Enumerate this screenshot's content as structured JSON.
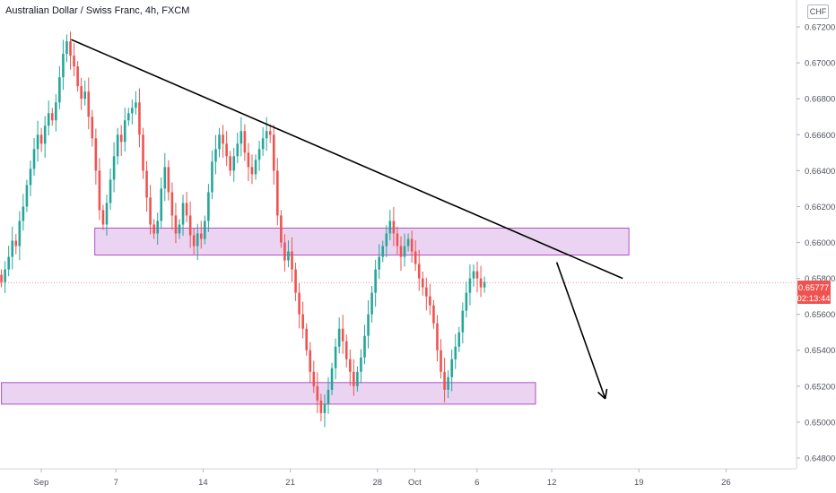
{
  "header": {
    "title": "Australian Dollar / Swiss Franc, 4h, FXCM",
    "currency": "CHF"
  },
  "colors": {
    "up": "#26a69a",
    "down": "#ef5350",
    "zone_fill": "#e6cdee",
    "zone_stroke": "#b24fc6",
    "line": "#000000",
    "price_line": "#f48fb1"
  },
  "chart_data": {
    "type": "candlestick",
    "y_ticks": [
      "0.67200",
      "0.67000",
      "0.66800",
      "0.66600",
      "0.66400",
      "0.66200",
      "0.66000",
      "0.65800",
      "0.65600",
      "0.65400",
      "0.65200",
      "0.65000",
      "0.64800"
    ],
    "y_values": [
      0.672,
      0.67,
      0.668,
      0.666,
      0.664,
      0.662,
      0.66,
      0.658,
      0.656,
      0.654,
      0.652,
      0.65,
      0.648
    ],
    "ylim": [
      0.6474,
      0.6735
    ],
    "x_labels": [
      {
        "label": "Sep",
        "day": 0
      },
      {
        "label": "7",
        "day": 6
      },
      {
        "label": "14",
        "day": 13
      },
      {
        "label": "21",
        "day": 20
      },
      {
        "label": "28",
        "day": 27
      },
      {
        "label": "Oct",
        "day": 30
      },
      {
        "label": "6",
        "day": 35
      },
      {
        "label": "12",
        "day": 41
      },
      {
        "label": "19",
        "day": 48
      },
      {
        "label": "26",
        "day": 55
      }
    ],
    "current_price": "0.65777",
    "countdown": "02:13:44",
    "current_value": 0.65777,
    "zones": [
      {
        "from_day": 4.3,
        "to_day": 47.2,
        "low": 0.6593,
        "high": 0.6608
      },
      {
        "from_day": -3.2,
        "to_day": 39.7,
        "low": 0.651,
        "high": 0.6522
      }
    ],
    "trendline": {
      "start_day": 2.4,
      "start_value": 0.6713,
      "end_day": 46.7,
      "end_value": 0.658
    },
    "arrow": {
      "start_day": 41.4,
      "start_value": 0.6589,
      "end_day": 45.3,
      "end_value": 0.6513
    },
    "candle_step_days": 0.1667,
    "start_day": -3.2,
    "closes": [
      0.6578,
      0.6585,
      0.6592,
      0.6601,
      0.6598,
      0.6612,
      0.662,
      0.6632,
      0.6641,
      0.6652,
      0.666,
      0.6655,
      0.6665,
      0.6672,
      0.6668,
      0.6678,
      0.6692,
      0.6705,
      0.6712,
      0.6704,
      0.6698,
      0.6687,
      0.668,
      0.6684,
      0.667,
      0.6658,
      0.664,
      0.6618,
      0.661,
      0.6622,
      0.6635,
      0.6648,
      0.666,
      0.6656,
      0.6668,
      0.6672,
      0.6675,
      0.6678,
      0.666,
      0.664,
      0.6625,
      0.661,
      0.6605,
      0.6612,
      0.663,
      0.6642,
      0.6628,
      0.6615,
      0.6605,
      0.661,
      0.6622,
      0.6615,
      0.6604,
      0.6598,
      0.6605,
      0.6602,
      0.6612,
      0.6628,
      0.6645,
      0.6652,
      0.666,
      0.6655,
      0.6648,
      0.664,
      0.6648,
      0.6655,
      0.6662,
      0.665,
      0.6642,
      0.6638,
      0.6646,
      0.6652,
      0.6658,
      0.6662,
      0.666,
      0.664,
      0.6615,
      0.66,
      0.659,
      0.6595,
      0.6585,
      0.6572,
      0.656,
      0.6552,
      0.654,
      0.6528,
      0.652,
      0.6512,
      0.6505,
      0.651,
      0.6518,
      0.653,
      0.6542,
      0.6552,
      0.6545,
      0.6535,
      0.6528,
      0.652,
      0.6528,
      0.6536,
      0.6548,
      0.656,
      0.6572,
      0.6585,
      0.6592,
      0.6598,
      0.6605,
      0.6612,
      0.6605,
      0.6598,
      0.6592,
      0.6598,
      0.6602,
      0.6595,
      0.6588,
      0.658,
      0.6575,
      0.657,
      0.6565,
      0.6555,
      0.654,
      0.6528,
      0.6518,
      0.6525,
      0.6535,
      0.6542,
      0.655,
      0.6562,
      0.6572,
      0.658,
      0.6584,
      0.658,
      0.6575,
      0.6578
    ]
  }
}
